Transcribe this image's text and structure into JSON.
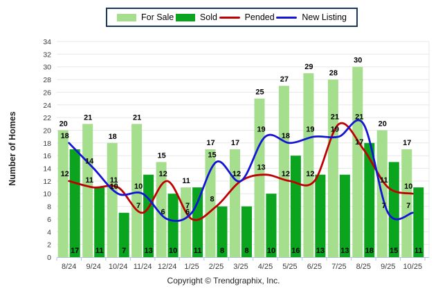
{
  "chart_data": {
    "type": "bar",
    "combo": "bars + smoothed lines",
    "title": "",
    "xlabel": "",
    "ylabel": "Number of Homes",
    "ylim": [
      0,
      34
    ],
    "ytick_step": 2,
    "grid": true,
    "legend_position": "top",
    "categories": [
      "8/24",
      "9/24",
      "10/24",
      "11/24",
      "12/24",
      "1/25",
      "2/25",
      "3/25",
      "4/25",
      "5/25",
      "6/25",
      "7/25",
      "8/25",
      "9/25",
      "10/25"
    ],
    "series": [
      {
        "name": "For Sale",
        "type": "bar",
        "color": "#A5DE8D",
        "values": [
          20,
          21,
          18,
          21,
          15,
          11,
          17,
          17,
          25,
          27,
          29,
          28,
          30,
          20,
          17
        ]
      },
      {
        "name": "Sold",
        "type": "bar",
        "color": "#0AA41E",
        "values": [
          17,
          11,
          7,
          13,
          10,
          11,
          8,
          8,
          10,
          16,
          13,
          13,
          18,
          15,
          11
        ]
      },
      {
        "name": "Pended",
        "type": "line",
        "color": "#C00000",
        "values": [
          12,
          11,
          11,
          7,
          12,
          6,
          8,
          12,
          13,
          12,
          12,
          21,
          17,
          11,
          10
        ]
      },
      {
        "name": "New Listing",
        "type": "line",
        "color": "#1414D6",
        "values": [
          18,
          14,
          10,
          10,
          6,
          7,
          15,
          12,
          19,
          18,
          19,
          19,
          21,
          7,
          7
        ]
      }
    ],
    "colors": {
      "grid": "#E7E7E7",
      "axis_line": "#A9C5DE",
      "tick_text": "#3A3A3A",
      "data_label": "#000000",
      "legend_border": "#17375E"
    }
  },
  "footer": {
    "copyright": "Copyright © Trendgraphix, Inc."
  }
}
